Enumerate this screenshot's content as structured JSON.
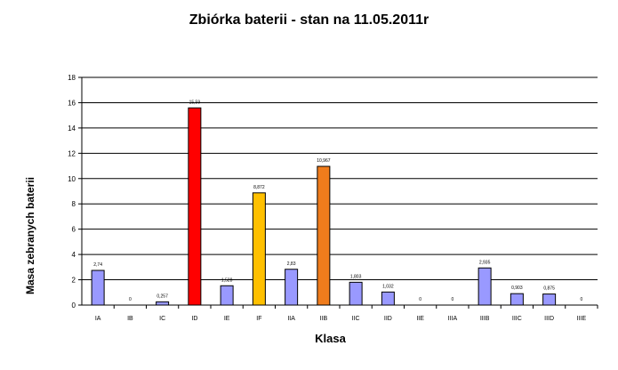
{
  "chart_data": {
    "type": "bar",
    "title": "Zbiórka baterii  - stan na 11.05.2011r",
    "xlabel": "Klasa",
    "ylabel": "Masa zebranych  baterii",
    "ylim": [
      0,
      18
    ],
    "yticks": [
      0,
      2,
      4,
      6,
      8,
      10,
      12,
      14,
      16,
      18
    ],
    "grid": true,
    "categories": [
      "IA",
      "IB",
      "IC",
      "ID",
      "IE",
      "IF",
      "IIA",
      "IIB",
      "IIC",
      "IID",
      "IIE",
      "IIIA",
      "IIIB",
      "IIIC",
      "IIID",
      "IIIE"
    ],
    "values": [
      2.74,
      0,
      0.257,
      15.59,
      1.528,
      8.872,
      2.83,
      10.967,
      1.803,
      1.032,
      0,
      0,
      2.935,
      0.903,
      0.875,
      0
    ],
    "data_labels": [
      "2,74",
      "0",
      "0,257",
      "15,59",
      "1,528",
      "8,872",
      "2,83",
      "10,967",
      "1,803",
      "1,032",
      "0",
      "0",
      "2,935",
      "0,903",
      "0,875",
      "0"
    ],
    "colors": [
      "#9999ff",
      "#9999ff",
      "#9999ff",
      "#ff0000",
      "#9999ff",
      "#ffc000",
      "#9999ff",
      "#f07c1c",
      "#9999ff",
      "#9999ff",
      "#9999ff",
      "#9999ff",
      "#9999ff",
      "#9999ff",
      "#9999ff",
      "#9999ff"
    ],
    "bar_outline": "#000000"
  }
}
